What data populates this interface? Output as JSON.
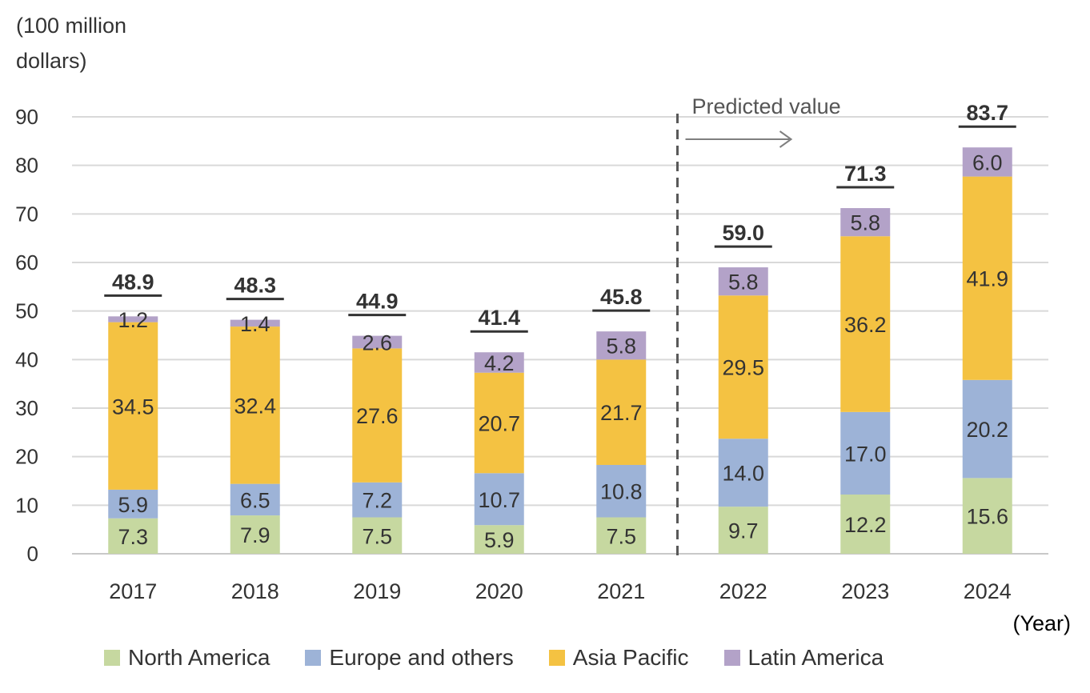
{
  "chart_data": {
    "type": "bar",
    "stacked": true,
    "ylabel": "(100 million dollars)",
    "xlabel": "(Year)",
    "ylim": [
      0,
      90
    ],
    "yticks": [
      0,
      10,
      20,
      30,
      40,
      50,
      60,
      70,
      80,
      90
    ],
    "grid": true,
    "legend_position": "bottom",
    "categories": [
      "2017",
      "2018",
      "2019",
      "2020",
      "2021",
      "2022",
      "2023",
      "2024"
    ],
    "series": [
      {
        "name": "North America",
        "color": "#c6d8a0",
        "values": [
          7.3,
          7.9,
          7.5,
          5.9,
          7.5,
          9.7,
          12.2,
          15.6
        ]
      },
      {
        "name": "Europe and others",
        "color": "#9db3d7",
        "values": [
          5.9,
          6.5,
          7.2,
          10.7,
          10.8,
          14.0,
          17.0,
          20.2
        ]
      },
      {
        "name": "Asia Pacific",
        "color": "#f4c242",
        "values": [
          34.5,
          32.4,
          27.6,
          20.7,
          21.7,
          29.5,
          36.2,
          41.9
        ]
      },
      {
        "name": "Latin America",
        "color": "#b3a2c8",
        "values": [
          1.2,
          1.4,
          2.6,
          4.2,
          5.8,
          5.8,
          5.8,
          6.0
        ]
      }
    ],
    "totals": [
      "48.9",
      "48.3",
      "44.9",
      "41.4",
      "45.8",
      "59.0",
      "71.3",
      "83.7"
    ],
    "segment_labels": [
      [
        "7.3",
        "7.9",
        "7.5",
        "5.9",
        "7.5",
        "9.7",
        "12.2",
        "15.6"
      ],
      [
        "5.9",
        "6.5",
        "7.2",
        "10.7",
        "10.8",
        "14.0",
        "17.0",
        "20.2"
      ],
      [
        "34.5",
        "32.4",
        "27.6",
        "20.7",
        "21.7",
        "29.5",
        "36.2",
        "41.9"
      ],
      [
        "1.2",
        "1.4",
        "2.6",
        "4.2",
        "5.8",
        "5.8",
        "5.8",
        "6.0"
      ]
    ],
    "annotation": "Predicted value",
    "predicted_from_category": "2022"
  },
  "text": {
    "unit_line1": "(100 million",
    "unit_line2": "dollars)",
    "year_unit": "(Year)"
  }
}
